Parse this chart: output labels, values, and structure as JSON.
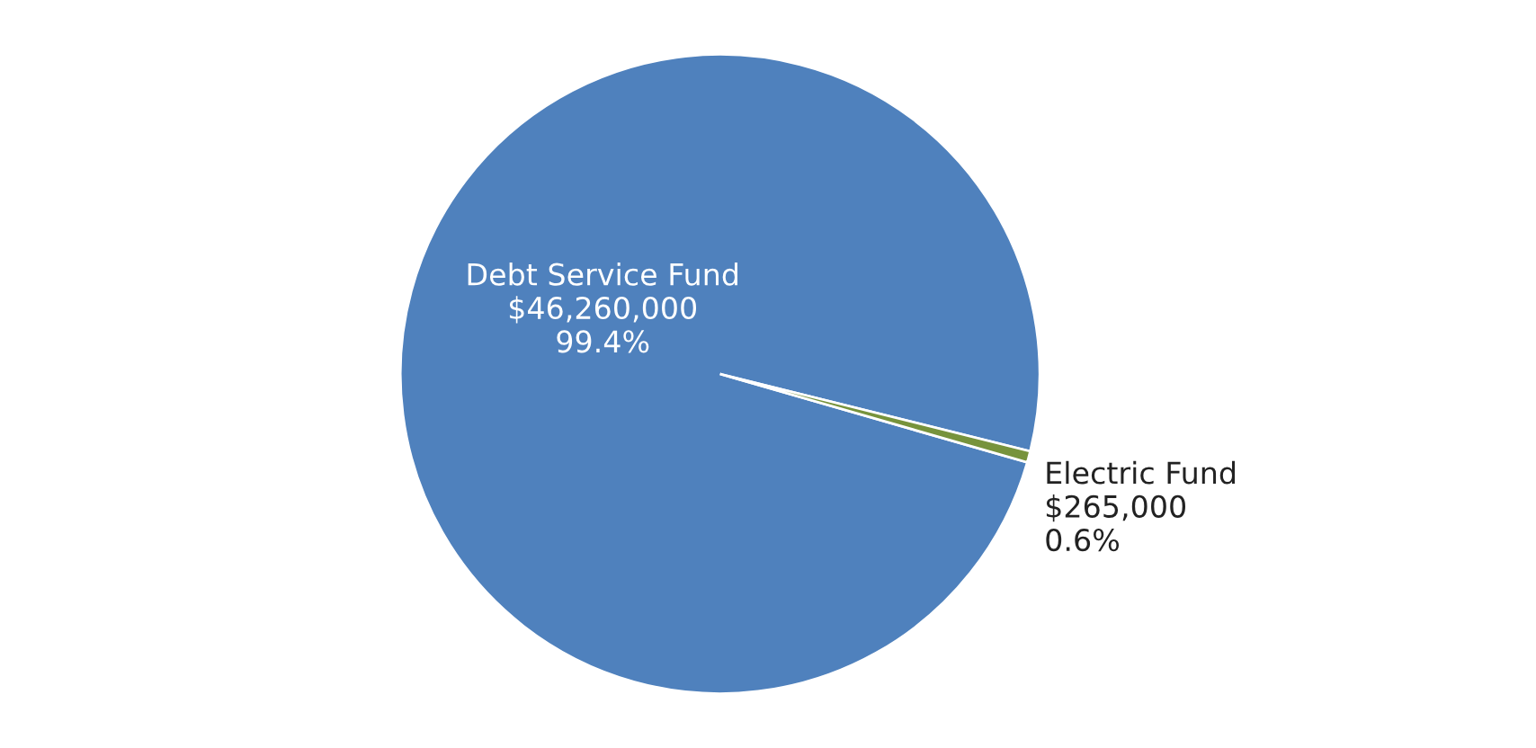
{
  "chart_data": {
    "type": "pie",
    "categories": [
      "Debt Service Fund",
      "Electric Fund"
    ],
    "values": [
      46260000,
      265000
    ],
    "colors": [
      "#4f81bd",
      "#77933c"
    ],
    "value_labels": [
      "$46,260,000\n99.4%",
      "$265,000\n0.6%"
    ]
  }
}
